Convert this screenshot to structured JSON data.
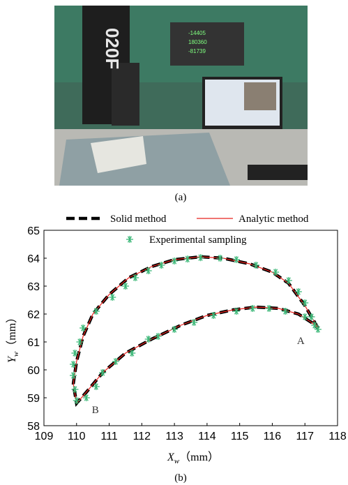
{
  "photo": {
    "machine_label": "020F",
    "readouts": [
      "-14405",
      "180360",
      "-81739"
    ]
  },
  "caption_a": "(a)",
  "caption_b": "(b)",
  "chart_data": {
    "type": "line",
    "xlabel_main": "X",
    "xlabel_sub": "w",
    "xlabel_unit": "（mm）",
    "ylabel_main": "Y",
    "ylabel_sub": "w",
    "ylabel_unit": "（mm）",
    "xlim": [
      109,
      118
    ],
    "xticks": [
      109,
      110,
      111,
      112,
      113,
      114,
      115,
      116,
      117,
      118
    ],
    "ylim": [
      58,
      65
    ],
    "yticks": [
      58,
      59,
      60,
      61,
      62,
      63,
      64,
      65
    ],
    "annotations": [
      "A",
      "B"
    ],
    "series": [
      {
        "name": "Solid method",
        "color": "#000000",
        "style": "dashed",
        "x": [
          117.4,
          117.0,
          116.5,
          116.0,
          115.3,
          114.5,
          113.8,
          113.0,
          112.3,
          111.6,
          111.0,
          110.5,
          110.2,
          110.0,
          109.9,
          110.0,
          110.3,
          110.8,
          111.5,
          112.3,
          113.2,
          114.0,
          114.8,
          115.5,
          116.2,
          116.8,
          117.2,
          117.4
        ],
        "values": [
          61.5,
          62.3,
          63.1,
          63.5,
          63.8,
          64.0,
          64.05,
          63.95,
          63.7,
          63.3,
          62.7,
          62.0,
          61.2,
          60.3,
          59.5,
          58.8,
          59.2,
          59.9,
          60.6,
          61.1,
          61.6,
          61.95,
          62.15,
          62.25,
          62.2,
          62.0,
          61.7,
          61.5
        ]
      },
      {
        "name": "Analytic method",
        "color": "#e8231f",
        "style": "solid",
        "x": [
          117.4,
          117.0,
          116.5,
          116.0,
          115.3,
          114.5,
          113.8,
          113.0,
          112.3,
          111.6,
          111.0,
          110.5,
          110.2,
          110.0,
          109.9,
          110.0,
          110.3,
          110.8,
          111.5,
          112.3,
          113.2,
          114.0,
          114.8,
          115.5,
          116.2,
          116.8,
          117.2,
          117.4
        ],
        "values": [
          61.5,
          62.3,
          63.1,
          63.5,
          63.8,
          64.0,
          64.05,
          63.95,
          63.7,
          63.3,
          62.7,
          62.0,
          61.2,
          60.3,
          59.5,
          58.8,
          59.2,
          59.9,
          60.6,
          61.1,
          61.6,
          61.95,
          62.15,
          62.25,
          62.2,
          62.0,
          61.7,
          61.5
        ]
      },
      {
        "name": "Experimental sampling",
        "color": "#3cb878",
        "style": "asterisk",
        "x": [
          117.4,
          117.2,
          117.0,
          116.8,
          116.5,
          116.1,
          115.5,
          114.9,
          114.4,
          113.8,
          113.4,
          113.0,
          112.6,
          112.2,
          111.8,
          111.5,
          111.1,
          110.6,
          110.2,
          110.1,
          109.95,
          109.9,
          109.9,
          109.95,
          110.0,
          110.3,
          110.6,
          110.8,
          111.2,
          111.7,
          112.2,
          112.5,
          113.0,
          113.6,
          114.2,
          114.9,
          115.4,
          115.9,
          116.4,
          117.0,
          117.3
        ],
        "values": [
          61.45,
          61.9,
          62.4,
          62.8,
          63.2,
          63.5,
          63.75,
          63.95,
          64.0,
          64.02,
          63.97,
          63.9,
          63.75,
          63.55,
          63.3,
          63.0,
          62.6,
          62.1,
          61.5,
          61.0,
          60.6,
          60.2,
          59.8,
          59.3,
          58.9,
          59.0,
          59.4,
          59.9,
          60.3,
          60.6,
          61.1,
          61.2,
          61.45,
          61.7,
          61.95,
          62.1,
          62.2,
          62.2,
          62.1,
          61.9,
          61.6
        ]
      }
    ]
  }
}
